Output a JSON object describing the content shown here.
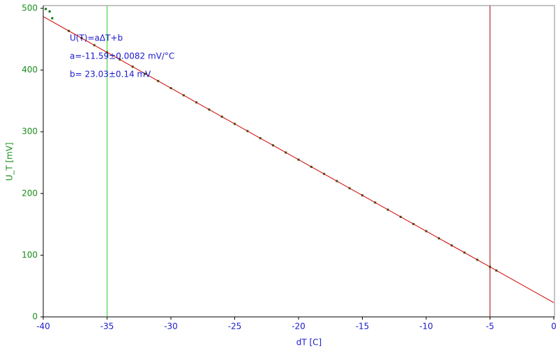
{
  "chart_data": {
    "type": "scatter",
    "xlabel": "dT [C]",
    "ylabel": "U_T [mV]",
    "xlim": [
      -40,
      0
    ],
    "xticks": [
      -40,
      -35,
      -30,
      -25,
      -20,
      -15,
      -10,
      -5,
      0
    ],
    "ylim": [
      0,
      500
    ],
    "yticks": [
      0,
      100,
      200,
      300,
      400,
      500
    ],
    "series": [
      {
        "color": "#0a6e0a",
        "x": [
          -39.8,
          -39.5,
          -39.3,
          -38,
          -37,
          -36,
          -35,
          -34,
          -33,
          -32,
          -31,
          -30,
          -29,
          -28,
          -27,
          -26,
          -25,
          -24,
          -23,
          -22,
          -21,
          -20,
          -19,
          -18,
          -17,
          -16,
          -15,
          -14,
          -13,
          -12,
          -11,
          -10,
          -9,
          -8,
          -7,
          -6,
          -5,
          -4.5
        ],
        "values": [
          499,
          495,
          484,
          463.5,
          451.9,
          440.3,
          428.7,
          417.1,
          405.5,
          393.9,
          382.3,
          370.7,
          359.1,
          347.6,
          336,
          324.4,
          312.8,
          301.2,
          289.6,
          278,
          266.4,
          254.8,
          243.2,
          231.7,
          220.1,
          208.5,
          196.9,
          185.3,
          173.7,
          162.1,
          150.5,
          138.9,
          127.3,
          115.8,
          104.2,
          92.6,
          81,
          75.2
        ]
      }
    ],
    "fit_line": {
      "color": "#cc0000",
      "x": [
        -40,
        0
      ],
      "values": [
        486.63,
        23.03
      ]
    },
    "cursors": [
      {
        "x": -35,
        "color": "#33cc33"
      },
      {
        "x": -5,
        "color": "#a01010"
      }
    ],
    "annotations": [
      "U(T)=aΔT+b",
      "a=-11.59±0.0082 mV/°C",
      "b= 23.03±0.14 mV"
    ]
  }
}
